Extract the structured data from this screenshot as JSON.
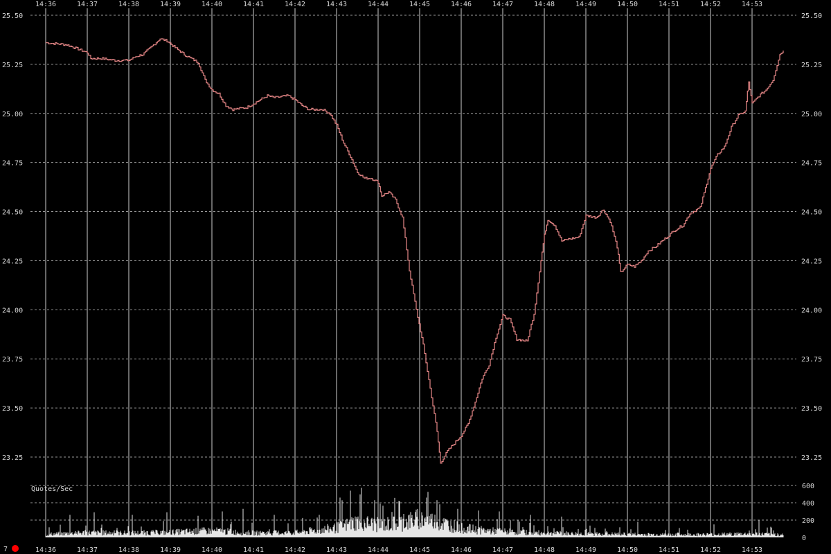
{
  "chart_data": [
    {
      "type": "line",
      "title": "",
      "xlabel": "",
      "ylabel": "",
      "x_ticks": [
        "14:36",
        "14:37",
        "14:38",
        "14:39",
        "14:40",
        "14:41",
        "14:42",
        "14:43",
        "14:44",
        "14:45",
        "14:46",
        "14:47",
        "14:48",
        "14:49",
        "14:50",
        "14:51",
        "14:52",
        "14:53"
      ],
      "y_ticks": [
        "25.50",
        "25.25",
        "25.00",
        "24.75",
        "24.50",
        "24.25",
        "24.00",
        "23.75",
        "23.50",
        "23.25"
      ],
      "ylim": [
        23.19,
        25.5
      ],
      "grid": true,
      "series": [
        {
          "color": "#e88888",
          "points": [
            [
              "14:36:00",
              25.36
            ],
            [
              "14:36:30",
              25.35
            ],
            [
              "14:36:45",
              25.33
            ],
            [
              "14:37:00",
              25.31
            ],
            [
              "14:37:05",
              25.28
            ],
            [
              "14:37:20",
              25.28
            ],
            [
              "14:37:40",
              25.27
            ],
            [
              "14:38:00",
              25.27
            ],
            [
              "14:38:10",
              25.29
            ],
            [
              "14:38:20",
              25.3
            ],
            [
              "14:38:30",
              25.33
            ],
            [
              "14:38:45",
              25.38
            ],
            [
              "14:38:55",
              25.37
            ],
            [
              "14:39:05",
              25.34
            ],
            [
              "14:39:20",
              25.3
            ],
            [
              "14:39:40",
              25.26
            ],
            [
              "14:39:50",
              25.17
            ],
            [
              "14:40:00",
              25.12
            ],
            [
              "14:40:10",
              25.1
            ],
            [
              "14:40:20",
              25.04
            ],
            [
              "14:40:30",
              25.02
            ],
            [
              "14:40:50",
              25.03
            ],
            [
              "14:41:00",
              25.05
            ],
            [
              "14:41:10",
              25.07
            ],
            [
              "14:41:20",
              25.09
            ],
            [
              "14:41:30",
              25.08
            ],
            [
              "14:41:50",
              25.09
            ],
            [
              "14:42:00",
              25.07
            ],
            [
              "14:42:10",
              25.04
            ],
            [
              "14:42:20",
              25.02
            ],
            [
              "14:42:40",
              25.02
            ],
            [
              "14:42:50",
              25.0
            ],
            [
              "14:43:00",
              24.94
            ],
            [
              "14:43:10",
              24.85
            ],
            [
              "14:43:20",
              24.78
            ],
            [
              "14:43:30",
              24.7
            ],
            [
              "14:43:40",
              24.67
            ],
            [
              "14:43:50",
              24.67
            ],
            [
              "14:44:00",
              24.65
            ],
            [
              "14:44:05",
              24.58
            ],
            [
              "14:44:15",
              24.6
            ],
            [
              "14:44:25",
              24.56
            ],
            [
              "14:44:35",
              24.47
            ],
            [
              "14:44:45",
              24.2
            ],
            [
              "14:44:55",
              24.0
            ],
            [
              "14:45:05",
              23.82
            ],
            [
              "14:45:15",
              23.6
            ],
            [
              "14:45:25",
              23.38
            ],
            [
              "14:45:30",
              23.22
            ],
            [
              "14:45:40",
              23.28
            ],
            [
              "14:45:50",
              23.32
            ],
            [
              "14:46:00",
              23.36
            ],
            [
              "14:46:10",
              23.42
            ],
            [
              "14:46:20",
              23.53
            ],
            [
              "14:46:30",
              23.65
            ],
            [
              "14:46:40",
              23.72
            ],
            [
              "14:46:50",
              23.86
            ],
            [
              "14:47:00",
              23.97
            ],
            [
              "14:47:10",
              23.95
            ],
            [
              "14:47:20",
              23.85
            ],
            [
              "14:47:35",
              23.84
            ],
            [
              "14:47:45",
              23.98
            ],
            [
              "14:47:55",
              24.25
            ],
            [
              "14:48:00",
              24.38
            ],
            [
              "14:48:05",
              24.46
            ],
            [
              "14:48:15",
              24.43
            ],
            [
              "14:48:25",
              24.35
            ],
            [
              "14:48:35",
              24.36
            ],
            [
              "14:48:50",
              24.37
            ],
            [
              "14:49:00",
              24.48
            ],
            [
              "14:49:15",
              24.47
            ],
            [
              "14:49:25",
              24.51
            ],
            [
              "14:49:35",
              24.45
            ],
            [
              "14:49:45",
              24.32
            ],
            [
              "14:49:50",
              24.19
            ],
            [
              "14:50:00",
              24.23
            ],
            [
              "14:50:10",
              24.22
            ],
            [
              "14:50:20",
              24.25
            ],
            [
              "14:50:30",
              24.3
            ],
            [
              "14:50:40",
              24.32
            ],
            [
              "14:50:50",
              24.35
            ],
            [
              "14:51:00",
              24.38
            ],
            [
              "14:51:10",
              24.41
            ],
            [
              "14:51:20",
              24.43
            ],
            [
              "14:51:30",
              24.49
            ],
            [
              "14:51:45",
              24.52
            ],
            [
              "14:52:00",
              24.72
            ],
            [
              "14:52:10",
              24.79
            ],
            [
              "14:52:20",
              24.83
            ],
            [
              "14:52:30",
              24.93
            ],
            [
              "14:52:40",
              24.99
            ],
            [
              "14:52:50",
              25.01
            ],
            [
              "14:52:55",
              25.16
            ],
            [
              "14:53:00",
              25.05
            ],
            [
              "14:53:10",
              25.09
            ],
            [
              "14:53:20",
              25.12
            ],
            [
              "14:53:30",
              25.17
            ],
            [
              "14:53:40",
              25.3
            ],
            [
              "14:53:45",
              25.32
            ]
          ]
        }
      ]
    },
    {
      "type": "bar",
      "title": "Quotes/Sec",
      "y_ticks": [
        "600",
        "400",
        "200",
        "0"
      ],
      "ylim": [
        0,
        600
      ],
      "volume_profile": [
        [
          "14:36:00",
          40
        ],
        [
          "14:37:00",
          60
        ],
        [
          "14:38:00",
          55
        ],
        [
          "14:39:00",
          65
        ],
        [
          "14:40:00",
          85
        ],
        [
          "14:41:00",
          55
        ],
        [
          "14:42:00",
          60
        ],
        [
          "14:43:00",
          120
        ],
        [
          "14:43:30",
          200
        ],
        [
          "14:44:00",
          160
        ],
        [
          "14:44:30",
          180
        ],
        [
          "14:45:00",
          240
        ],
        [
          "14:45:30",
          190
        ],
        [
          "14:46:00",
          120
        ],
        [
          "14:46:30",
          90
        ],
        [
          "14:47:00",
          75
        ],
        [
          "14:48:00",
          55
        ],
        [
          "14:49:00",
          45
        ],
        [
          "14:50:00",
          40
        ],
        [
          "14:51:00",
          35
        ],
        [
          "14:52:00",
          38
        ],
        [
          "14:53:00",
          45
        ],
        [
          "14:53:45",
          35
        ]
      ],
      "volume_peaks": [
        [
          "14:36:35",
          260
        ],
        [
          "14:37:10",
          290
        ],
        [
          "14:38:05",
          260
        ],
        [
          "14:38:55",
          290
        ],
        [
          "14:39:40",
          250
        ],
        [
          "14:40:15",
          300
        ],
        [
          "14:40:45",
          330
        ],
        [
          "14:41:30",
          260
        ],
        [
          "14:42:35",
          260
        ],
        [
          "14:43:05",
          460
        ],
        [
          "14:43:20",
          540
        ],
        [
          "14:43:55",
          430
        ],
        [
          "14:44:30",
          420
        ],
        [
          "14:45:10",
          460
        ],
        [
          "14:45:25",
          430
        ],
        [
          "14:45:55",
          330
        ],
        [
          "14:46:25",
          310
        ],
        [
          "14:46:55",
          300
        ],
        [
          "14:47:40",
          260
        ],
        [
          "14:48:25",
          240
        ],
        [
          "14:50:15",
          180
        ],
        [
          "14:52:05",
          150
        ],
        [
          "14:53:10",
          200
        ]
      ],
      "current_count": "7"
    }
  ]
}
